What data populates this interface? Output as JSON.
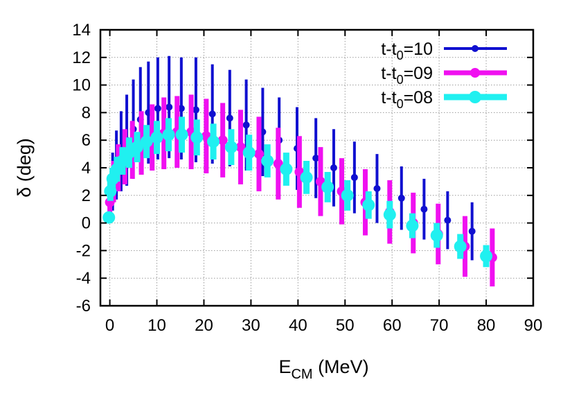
{
  "chart_data": {
    "type": "scatter",
    "xlabel": "E",
    "xlabel_sub": "CM",
    "xlabel_unit": " (MeV)",
    "ylabel": "δ (deg)",
    "xlim": [
      -2,
      90
    ],
    "ylim": [
      -6,
      14
    ],
    "xticks": [
      0,
      10,
      20,
      30,
      40,
      50,
      60,
      70,
      80,
      90
    ],
    "yticks": [
      -6,
      -4,
      -2,
      0,
      2,
      4,
      6,
      8,
      10,
      12,
      14
    ],
    "grid": true,
    "legend_position": "top-right",
    "series": [
      {
        "name_prefix": "t-t",
        "name_sub": "0",
        "name_suffix": "=10",
        "color": "#1010d0",
        "points": [
          {
            "x": 0.1,
            "y": 1.5,
            "err": 1.1
          },
          {
            "x": 0.6,
            "y": 3.0,
            "err": 2.1
          },
          {
            "x": 1.4,
            "y": 4.2,
            "err": 2.5
          },
          {
            "x": 2.4,
            "y": 5.2,
            "err": 2.9
          },
          {
            "x": 3.6,
            "y": 6.0,
            "err": 3.3
          },
          {
            "x": 5.0,
            "y": 6.8,
            "err": 3.6
          },
          {
            "x": 6.5,
            "y": 7.5,
            "err": 3.8
          },
          {
            "x": 8.2,
            "y": 8.0,
            "err": 3.7
          },
          {
            "x": 10.2,
            "y": 8.3,
            "err": 3.7
          },
          {
            "x": 12.6,
            "y": 8.4,
            "err": 3.7
          },
          {
            "x": 15.2,
            "y": 8.3,
            "err": 3.7
          },
          {
            "x": 18.3,
            "y": 8.2,
            "err": 3.8
          },
          {
            "x": 21.8,
            "y": 7.9,
            "err": 3.6
          },
          {
            "x": 25.5,
            "y": 7.6,
            "err": 3.5
          },
          {
            "x": 29.0,
            "y": 7.1,
            "err": 3.3
          },
          {
            "x": 32.5,
            "y": 6.6,
            "err": 3.2
          },
          {
            "x": 36.0,
            "y": 6.0,
            "err": 3.1
          },
          {
            "x": 39.8,
            "y": 5.4,
            "err": 3.0
          },
          {
            "x": 43.8,
            "y": 4.7,
            "err": 2.9
          },
          {
            "x": 47.6,
            "y": 4.0,
            "err": 2.8
          },
          {
            "x": 52.0,
            "y": 3.3,
            "err": 2.6
          },
          {
            "x": 56.8,
            "y": 2.5,
            "err": 2.5
          },
          {
            "x": 62.0,
            "y": 1.8,
            "err": 2.3
          },
          {
            "x": 66.8,
            "y": 1.0,
            "err": 2.2
          },
          {
            "x": 71.8,
            "y": 0.2,
            "err": 2.1
          },
          {
            "x": 77.0,
            "y": -0.6,
            "err": 2.1
          }
        ]
      },
      {
        "name_prefix": "t-t",
        "name_sub": "0",
        "name_suffix": "=09",
        "color": "#f010f0",
        "points": [
          {
            "x": 0.0,
            "y": 1.5,
            "err": 0.9
          },
          {
            "x": 0.8,
            "y": 3.0,
            "err": 1.5
          },
          {
            "x": 1.8,
            "y": 4.0,
            "err": 1.7
          },
          {
            "x": 3.2,
            "y": 4.8,
            "err": 2.0
          },
          {
            "x": 4.8,
            "y": 5.3,
            "err": 2.1
          },
          {
            "x": 6.7,
            "y": 5.8,
            "err": 2.3
          },
          {
            "x": 9.0,
            "y": 6.2,
            "err": 2.4
          },
          {
            "x": 11.5,
            "y": 6.5,
            "err": 2.6
          },
          {
            "x": 14.3,
            "y": 6.6,
            "err": 2.6
          },
          {
            "x": 17.3,
            "y": 6.6,
            "err": 2.7
          },
          {
            "x": 20.5,
            "y": 6.3,
            "err": 2.7
          },
          {
            "x": 24.0,
            "y": 6.0,
            "err": 2.7
          },
          {
            "x": 27.8,
            "y": 5.5,
            "err": 2.7
          },
          {
            "x": 31.7,
            "y": 5.0,
            "err": 2.7
          },
          {
            "x": 35.8,
            "y": 4.3,
            "err": 2.6
          },
          {
            "x": 40.3,
            "y": 3.7,
            "err": 2.6
          },
          {
            "x": 44.8,
            "y": 3.0,
            "err": 2.5
          },
          {
            "x": 49.3,
            "y": 2.3,
            "err": 2.4
          },
          {
            "x": 54.3,
            "y": 1.5,
            "err": 2.4
          },
          {
            "x": 59.5,
            "y": 0.8,
            "err": 2.3
          },
          {
            "x": 64.5,
            "y": 0.0,
            "err": 2.2
          },
          {
            "x": 69.8,
            "y": -0.8,
            "err": 2.2
          },
          {
            "x": 75.5,
            "y": -1.7,
            "err": 2.2
          },
          {
            "x": 81.3,
            "y": -2.5,
            "err": 2.1
          }
        ]
      },
      {
        "name_prefix": "t-t",
        "name_sub": "0",
        "name_suffix": "=08",
        "color": "#20f0f0",
        "points": [
          {
            "x": -0.2,
            "y": 0.4,
            "err": 0.4
          },
          {
            "x": 0.1,
            "y": 2.3,
            "err": 0.7
          },
          {
            "x": 0.6,
            "y": 3.2,
            "err": 0.8
          },
          {
            "x": 1.5,
            "y": 3.9,
            "err": 0.9
          },
          {
            "x": 2.7,
            "y": 4.5,
            "err": 1.0
          },
          {
            "x": 4.1,
            "y": 5.1,
            "err": 1.1
          },
          {
            "x": 5.8,
            "y": 5.5,
            "err": 1.1
          },
          {
            "x": 7.8,
            "y": 5.9,
            "err": 1.2
          },
          {
            "x": 10.0,
            "y": 6.2,
            "err": 1.2
          },
          {
            "x": 12.5,
            "y": 6.4,
            "err": 1.2
          },
          {
            "x": 15.3,
            "y": 6.4,
            "err": 1.3
          },
          {
            "x": 18.5,
            "y": 6.2,
            "err": 1.3
          },
          {
            "x": 22.0,
            "y": 5.9,
            "err": 1.3
          },
          {
            "x": 25.8,
            "y": 5.5,
            "err": 1.3
          },
          {
            "x": 29.6,
            "y": 5.1,
            "err": 1.3
          },
          {
            "x": 33.5,
            "y": 4.5,
            "err": 1.2
          },
          {
            "x": 37.5,
            "y": 3.9,
            "err": 1.2
          },
          {
            "x": 41.8,
            "y": 3.3,
            "err": 1.2
          },
          {
            "x": 46.3,
            "y": 2.6,
            "err": 1.1
          },
          {
            "x": 50.5,
            "y": 2.0,
            "err": 1.1
          },
          {
            "x": 55.0,
            "y": 1.3,
            "err": 1.0
          },
          {
            "x": 59.5,
            "y": 0.6,
            "err": 1.0
          },
          {
            "x": 64.3,
            "y": -0.2,
            "err": 0.9
          },
          {
            "x": 69.5,
            "y": -0.9,
            "err": 0.9
          },
          {
            "x": 74.5,
            "y": -1.7,
            "err": 0.9
          },
          {
            "x": 80.0,
            "y": -2.4,
            "err": 0.8
          }
        ]
      }
    ]
  }
}
